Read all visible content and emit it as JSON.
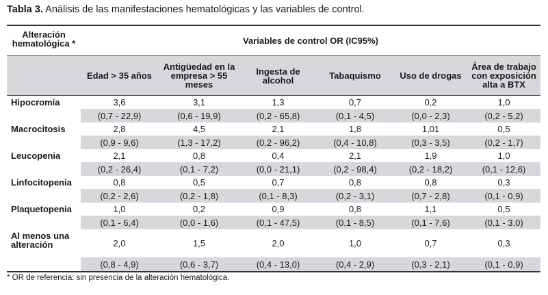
{
  "caption": {
    "label": "Tabla 3.",
    "text": " Análisis de las manifestaciones hematológicas y las variables de control."
  },
  "header": {
    "corner": "Alteración hematológica *",
    "group": "Variables de control OR (IC95%)",
    "columns": [
      "Edad > 35 años",
      "Antigüedad en la empresa > 55 meses",
      "Ingesta de alcohol",
      "Tabaquismo",
      "Uso de drogas",
      "Área de trabajo con exposición alta a BTX"
    ]
  },
  "rows": [
    {
      "name": "Hipocromía",
      "or": [
        "3,6",
        "3,1",
        "1,3",
        "0,7",
        "0,2",
        "1,0"
      ],
      "ci": [
        "(0,7 - 22,9)",
        "(0,6 - 19,9)",
        "(0,2 - 65,8)",
        "(0,1 - 4,5)",
        "(0,0 - 2,3)",
        "(0,2 - 5,2)"
      ]
    },
    {
      "name": "Macrocitosis",
      "or": [
        "2,8",
        "4,5",
        "2,1",
        "1,8",
        "1,01",
        "0,5"
      ],
      "ci": [
        "(0,9 - 9,6)",
        "(1,3 - 17,2)",
        "(0,2 - 96,2)",
        "(0,4 - 10,8)",
        "(0,3 - 3,5)",
        "(0,2 - 1,7)"
      ]
    },
    {
      "name": "Leucopenia",
      "or": [
        "2,1",
        "0,8",
        "0,4",
        "2,1",
        "1,9",
        "1,0"
      ],
      "ci": [
        "(0,2 - 26,4)",
        "(0,1 - 7,2)",
        "(0,0 - 21,1)",
        "(0,2 - 98,4)",
        "(0,2 - 18,2)",
        "(0,1 - 12,6)"
      ]
    },
    {
      "name": "Linfocitopenia",
      "or": [
        "0,8",
        "0,5",
        "0,7",
        "0,8",
        "0,8",
        "0,3"
      ],
      "ci": [
        "(0,2 - 2,6)",
        "(0,2 - 1,8)",
        "(0,1 - 8,3)",
        "(0,2 - 3,1)",
        "(0,7 - 2,8)",
        "(0,1 - 0,9)"
      ]
    },
    {
      "name": "Plaquetopenia",
      "or": [
        "1,0",
        "0,2",
        "0,9",
        "0,8",
        "1,1",
        "0,5"
      ],
      "ci": [
        "(0,1 - 6,4)",
        "(0,0 - 1,6)",
        "(0,1 - 47,5)",
        "(0,1 - 8,5)",
        "(0,1 - 7,6)",
        "(0,1 - 3,0)"
      ]
    },
    {
      "name": "Al menos una alteración",
      "or": [
        "2,0",
        "1,5",
        "2,0",
        "1,0",
        "0,7",
        "0,3"
      ],
      "ci": [
        "(0,8 - 4,9)",
        "(0,6 - 3,7)",
        "(0,4 - 13,0)",
        "(0,4 - 2,9)",
        "(0,3 - 2,1)",
        "(0,1 - 0,9)"
      ]
    }
  ],
  "footnote": "* OR de referencia: sin presencia de la alteración hematológica."
}
